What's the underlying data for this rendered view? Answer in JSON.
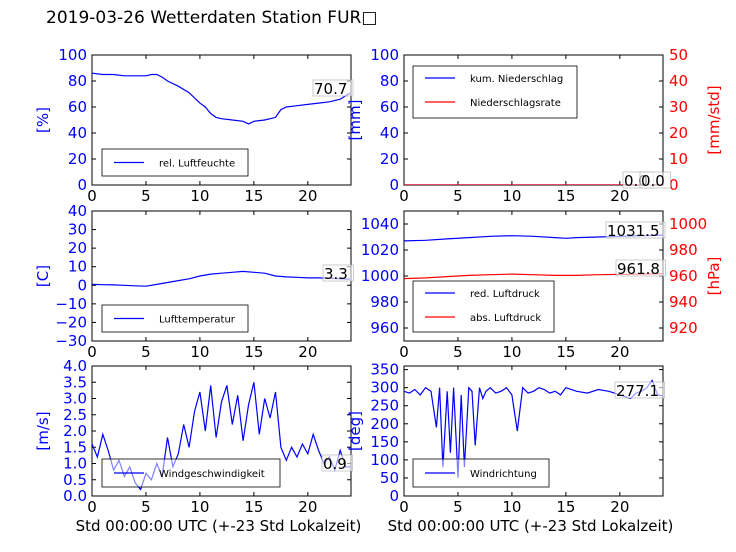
{
  "page": {
    "title": "2019-03-26 Wetterdaten Station FUR□"
  },
  "chart_data": [
    {
      "id": "humidity",
      "type": "line",
      "ylabel": "[%]",
      "ylim": [
        0,
        100
      ],
      "yticks": [
        "0",
        "20",
        "40",
        "60",
        "80",
        "100"
      ],
      "xlim": [
        0,
        24
      ],
      "xticks": [
        "0",
        "5",
        "10",
        "15",
        "20"
      ],
      "xlabel": "",
      "legend_position": "lower-left",
      "series": [
        {
          "name": "rel. Luftfeuchte",
          "color": "#0000ff",
          "x": [
            0,
            1,
            2,
            3,
            4,
            5,
            5.5,
            6,
            6.5,
            7,
            8,
            9,
            10,
            10.5,
            11,
            11.5,
            12,
            13,
            14,
            14.5,
            15,
            16,
            17,
            17.5,
            18,
            19,
            20,
            21,
            22,
            23,
            23.9
          ],
          "y": [
            86,
            85,
            85,
            84,
            84,
            84,
            85,
            85,
            83,
            80,
            76,
            71,
            63,
            60,
            55,
            52,
            51,
            50,
            49,
            47,
            49,
            50,
            52,
            58,
            60,
            61,
            62,
            63,
            64,
            66,
            70.7
          ]
        }
      ],
      "annotations": [
        {
          "label": "70.7"
        }
      ]
    },
    {
      "id": "precip",
      "type": "line",
      "ylabel": "[mm]",
      "ylabel2": "[mm/std]",
      "ylim": [
        0,
        100
      ],
      "yticks": [
        "0",
        "20",
        "40",
        "60",
        "80",
        "100"
      ],
      "ylim2": [
        0,
        50
      ],
      "yticks2": [
        "0",
        "10",
        "20",
        "30",
        "40",
        "50"
      ],
      "xlim": [
        0,
        24
      ],
      "xticks": [
        "0",
        "5",
        "10",
        "15",
        "20"
      ],
      "xlabel": "",
      "legend_position": "upper-left",
      "series": [
        {
          "name": "kum. Niederschlag",
          "color": "#0000ff",
          "x": [
            0,
            24
          ],
          "y": [
            0,
            0
          ]
        },
        {
          "name": "Niederschlagsrate",
          "color": "#ff0000",
          "axis": "right",
          "x": [
            0,
            24
          ],
          "y": [
            0,
            0
          ]
        }
      ],
      "annotations": [
        {
          "label": "0.0"
        },
        {
          "label": "0.0"
        }
      ]
    },
    {
      "id": "temperature",
      "type": "line",
      "ylabel": "[C]",
      "ylim": [
        -30,
        40
      ],
      "yticks": [
        "−30",
        "−20",
        "−10",
        "0",
        "10",
        "20",
        "30",
        "40"
      ],
      "xlim": [
        0,
        24
      ],
      "xticks": [
        "0",
        "5",
        "10",
        "15",
        "20"
      ],
      "xlabel": "",
      "legend_position": "lower-left",
      "series": [
        {
          "name": "Lufttemperatur",
          "color": "#0000ff",
          "x": [
            0,
            1,
            2,
            3,
            4,
            5,
            6,
            7,
            8,
            9,
            10,
            11,
            12,
            13,
            14,
            15,
            16,
            17,
            18,
            19,
            20,
            21,
            22,
            23,
            23.9
          ],
          "y": [
            0.5,
            0.3,
            0.2,
            0.0,
            -0.3,
            -0.5,
            0.5,
            1.5,
            2.5,
            3.5,
            5,
            6,
            6.5,
            7,
            7.5,
            7,
            6.5,
            5,
            4.5,
            4.3,
            4,
            4,
            3.8,
            3.5,
            3.3
          ]
        }
      ],
      "annotations": [
        {
          "label": "3.3"
        }
      ]
    },
    {
      "id": "pressure",
      "type": "line",
      "ylabel": "",
      "ylabel2": "[hPa]",
      "ylim": [
        950,
        1050
      ],
      "yticks": [
        "960",
        "980",
        "1000",
        "1020",
        "1040"
      ],
      "ylim2": [
        910,
        1010
      ],
      "yticks2": [
        "920",
        "940",
        "960",
        "980",
        "1000"
      ],
      "xlim": [
        0,
        24
      ],
      "xticks": [
        "0",
        "5",
        "10",
        "15",
        "20"
      ],
      "xlabel": "",
      "legend_position": "lower-left",
      "series": [
        {
          "name": "red. Luftdruck",
          "color": "#0000ff",
          "x": [
            0,
            2,
            4,
            6,
            8,
            10,
            12,
            14,
            15,
            16,
            18,
            20,
            22,
            24
          ],
          "y": [
            1027,
            1027.5,
            1028.5,
            1029.5,
            1030.5,
            1031,
            1030.5,
            1029.5,
            1029,
            1029.5,
            1030,
            1030.5,
            1031,
            1031.5
          ]
        },
        {
          "name": "abs. Luftdruck",
          "color": "#ff0000",
          "axis": "right",
          "x": [
            0,
            2,
            4,
            6,
            8,
            10,
            12,
            14,
            16,
            18,
            20,
            22,
            24
          ],
          "y": [
            958,
            958.5,
            959.5,
            960.5,
            961,
            961.5,
            961,
            960.5,
            960.5,
            961,
            961.2,
            961.5,
            961.8
          ]
        }
      ],
      "annotations": [
        {
          "label": "1031.5"
        },
        {
          "label": "961.8"
        }
      ]
    },
    {
      "id": "windspeed",
      "type": "line",
      "ylabel": "[m/s]",
      "ylim": [
        0,
        4
      ],
      "yticks": [
        "0.0",
        "0.5",
        "1.0",
        "1.5",
        "2.0",
        "2.5",
        "3.0",
        "3.5",
        "4.0"
      ],
      "xlim": [
        0,
        24
      ],
      "xticks": [
        "0",
        "5",
        "10",
        "15",
        "20"
      ],
      "xlabel": "Std 00:00:00 UTC (+-23 Std Lokalzeit)",
      "legend_position": "lower-left",
      "series": [
        {
          "name": "Windgeschwindigkeit",
          "color": "#0000ff",
          "x": [
            0,
            0.5,
            1,
            1.5,
            2,
            2.5,
            3,
            3.5,
            4,
            4.5,
            5,
            5.5,
            6,
            6.5,
            7,
            7.5,
            8,
            8.5,
            9,
            9.5,
            10,
            10.5,
            11,
            11.5,
            12,
            12.5,
            13,
            13.5,
            14,
            14.5,
            15,
            15.5,
            16,
            16.5,
            17,
            17.5,
            18,
            18.5,
            19,
            19.5,
            20,
            20.5,
            21,
            21.5,
            22,
            22.5,
            23,
            23.5,
            24
          ],
          "y": [
            1.6,
            1.2,
            1.9,
            1.4,
            0.8,
            1.1,
            0.6,
            0.9,
            0.4,
            0.2,
            0.7,
            0.5,
            1.0,
            0.6,
            1.8,
            0.9,
            1.3,
            2.2,
            1.5,
            2.6,
            3.2,
            2.0,
            3.4,
            1.8,
            2.9,
            3.4,
            2.2,
            3.1,
            1.7,
            2.8,
            3.5,
            1.9,
            3.0,
            2.4,
            3.2,
            1.5,
            1.1,
            1.5,
            1.2,
            1.6,
            1.3,
            1.9,
            1.4,
            1.0,
            1.2,
            0.8,
            1.4,
            0.9,
            0.9
          ]
        }
      ],
      "annotations": [
        {
          "label": "0.9"
        }
      ]
    },
    {
      "id": "winddir",
      "type": "line",
      "ylabel": "[deg]",
      "ylim": [
        0,
        360
      ],
      "yticks": [
        "0",
        "50",
        "100",
        "150",
        "200",
        "250",
        "300",
        "350"
      ],
      "xlim": [
        0,
        24
      ],
      "xticks": [
        "0",
        "5",
        "10",
        "15",
        "20"
      ],
      "xlabel": "Std 00:00:00 UTC (+-23 Std Lokalzeit)",
      "legend_position": "lower-left",
      "series": [
        {
          "name": "Windrichtung",
          "color": "#0000ff",
          "x": [
            0,
            0.5,
            1,
            1.5,
            2,
            2.5,
            3,
            3.3,
            3.6,
            4,
            4.3,
            4.6,
            5,
            5.3,
            5.6,
            6,
            6.3,
            6.6,
            7,
            7.3,
            7.6,
            8,
            8.5,
            9,
            9.5,
            10,
            10.5,
            11,
            11.5,
            12,
            12.5,
            13,
            13.5,
            14,
            14.5,
            15,
            16,
            17,
            18,
            19,
            20,
            20.5,
            21,
            21.5,
            22,
            22.5,
            23,
            23.5,
            24
          ],
          "y": [
            290,
            285,
            295,
            280,
            300,
            290,
            190,
            300,
            80,
            290,
            120,
            300,
            50,
            280,
            80,
            300,
            290,
            140,
            300,
            270,
            290,
            300,
            285,
            290,
            300,
            280,
            180,
            300,
            285,
            290,
            300,
            295,
            285,
            290,
            280,
            300,
            290,
            285,
            295,
            290,
            280,
            275,
            270,
            285,
            290,
            300,
            320,
            280,
            277.1
          ]
        }
      ],
      "annotations": [
        {
          "label": "277.1"
        }
      ]
    }
  ]
}
